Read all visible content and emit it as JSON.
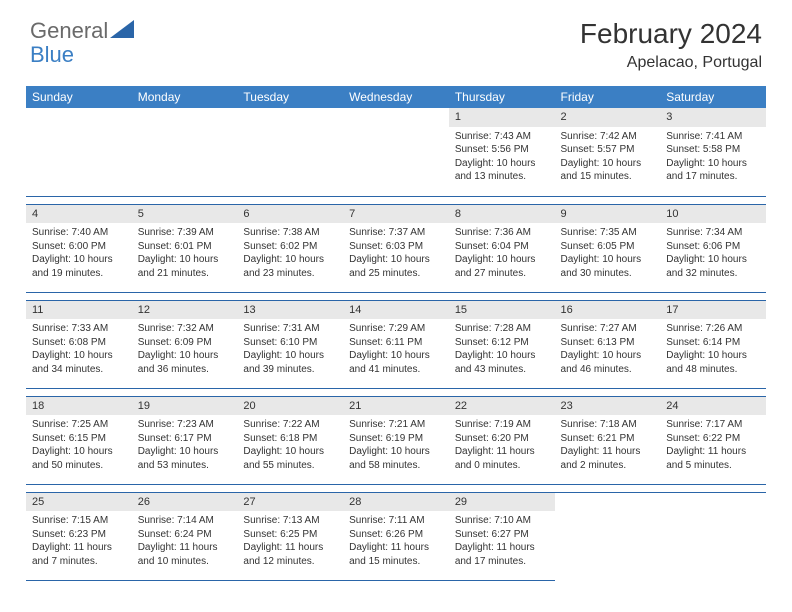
{
  "logo": {
    "part1": "General",
    "part2": "Blue"
  },
  "title": "February 2024",
  "location": "Apelacao, Portugal",
  "headers": [
    "Sunday",
    "Monday",
    "Tuesday",
    "Wednesday",
    "Thursday",
    "Friday",
    "Saturday"
  ],
  "colors": {
    "header_bg": "#3b7fc4",
    "header_fg": "#ffffff",
    "rule": "#2a65a8",
    "daynum_bg": "#e8e8e8",
    "logo_gray": "#6a6a6a",
    "logo_blue": "#3b7fc4"
  },
  "weeks": [
    [
      null,
      null,
      null,
      null,
      {
        "n": "1",
        "sr": "Sunrise: 7:43 AM",
        "ss": "Sunset: 5:56 PM",
        "d1": "Daylight: 10 hours",
        "d2": "and 13 minutes."
      },
      {
        "n": "2",
        "sr": "Sunrise: 7:42 AM",
        "ss": "Sunset: 5:57 PM",
        "d1": "Daylight: 10 hours",
        "d2": "and 15 minutes."
      },
      {
        "n": "3",
        "sr": "Sunrise: 7:41 AM",
        "ss": "Sunset: 5:58 PM",
        "d1": "Daylight: 10 hours",
        "d2": "and 17 minutes."
      }
    ],
    [
      {
        "n": "4",
        "sr": "Sunrise: 7:40 AM",
        "ss": "Sunset: 6:00 PM",
        "d1": "Daylight: 10 hours",
        "d2": "and 19 minutes."
      },
      {
        "n": "5",
        "sr": "Sunrise: 7:39 AM",
        "ss": "Sunset: 6:01 PM",
        "d1": "Daylight: 10 hours",
        "d2": "and 21 minutes."
      },
      {
        "n": "6",
        "sr": "Sunrise: 7:38 AM",
        "ss": "Sunset: 6:02 PM",
        "d1": "Daylight: 10 hours",
        "d2": "and 23 minutes."
      },
      {
        "n": "7",
        "sr": "Sunrise: 7:37 AM",
        "ss": "Sunset: 6:03 PM",
        "d1": "Daylight: 10 hours",
        "d2": "and 25 minutes."
      },
      {
        "n": "8",
        "sr": "Sunrise: 7:36 AM",
        "ss": "Sunset: 6:04 PM",
        "d1": "Daylight: 10 hours",
        "d2": "and 27 minutes."
      },
      {
        "n": "9",
        "sr": "Sunrise: 7:35 AM",
        "ss": "Sunset: 6:05 PM",
        "d1": "Daylight: 10 hours",
        "d2": "and 30 minutes."
      },
      {
        "n": "10",
        "sr": "Sunrise: 7:34 AM",
        "ss": "Sunset: 6:06 PM",
        "d1": "Daylight: 10 hours",
        "d2": "and 32 minutes."
      }
    ],
    [
      {
        "n": "11",
        "sr": "Sunrise: 7:33 AM",
        "ss": "Sunset: 6:08 PM",
        "d1": "Daylight: 10 hours",
        "d2": "and 34 minutes."
      },
      {
        "n": "12",
        "sr": "Sunrise: 7:32 AM",
        "ss": "Sunset: 6:09 PM",
        "d1": "Daylight: 10 hours",
        "d2": "and 36 minutes."
      },
      {
        "n": "13",
        "sr": "Sunrise: 7:31 AM",
        "ss": "Sunset: 6:10 PM",
        "d1": "Daylight: 10 hours",
        "d2": "and 39 minutes."
      },
      {
        "n": "14",
        "sr": "Sunrise: 7:29 AM",
        "ss": "Sunset: 6:11 PM",
        "d1": "Daylight: 10 hours",
        "d2": "and 41 minutes."
      },
      {
        "n": "15",
        "sr": "Sunrise: 7:28 AM",
        "ss": "Sunset: 6:12 PM",
        "d1": "Daylight: 10 hours",
        "d2": "and 43 minutes."
      },
      {
        "n": "16",
        "sr": "Sunrise: 7:27 AM",
        "ss": "Sunset: 6:13 PM",
        "d1": "Daylight: 10 hours",
        "d2": "and 46 minutes."
      },
      {
        "n": "17",
        "sr": "Sunrise: 7:26 AM",
        "ss": "Sunset: 6:14 PM",
        "d1": "Daylight: 10 hours",
        "d2": "and 48 minutes."
      }
    ],
    [
      {
        "n": "18",
        "sr": "Sunrise: 7:25 AM",
        "ss": "Sunset: 6:15 PM",
        "d1": "Daylight: 10 hours",
        "d2": "and 50 minutes."
      },
      {
        "n": "19",
        "sr": "Sunrise: 7:23 AM",
        "ss": "Sunset: 6:17 PM",
        "d1": "Daylight: 10 hours",
        "d2": "and 53 minutes."
      },
      {
        "n": "20",
        "sr": "Sunrise: 7:22 AM",
        "ss": "Sunset: 6:18 PM",
        "d1": "Daylight: 10 hours",
        "d2": "and 55 minutes."
      },
      {
        "n": "21",
        "sr": "Sunrise: 7:21 AM",
        "ss": "Sunset: 6:19 PM",
        "d1": "Daylight: 10 hours",
        "d2": "and 58 minutes."
      },
      {
        "n": "22",
        "sr": "Sunrise: 7:19 AM",
        "ss": "Sunset: 6:20 PM",
        "d1": "Daylight: 11 hours",
        "d2": "and 0 minutes."
      },
      {
        "n": "23",
        "sr": "Sunrise: 7:18 AM",
        "ss": "Sunset: 6:21 PM",
        "d1": "Daylight: 11 hours",
        "d2": "and 2 minutes."
      },
      {
        "n": "24",
        "sr": "Sunrise: 7:17 AM",
        "ss": "Sunset: 6:22 PM",
        "d1": "Daylight: 11 hours",
        "d2": "and 5 minutes."
      }
    ],
    [
      {
        "n": "25",
        "sr": "Sunrise: 7:15 AM",
        "ss": "Sunset: 6:23 PM",
        "d1": "Daylight: 11 hours",
        "d2": "and 7 minutes."
      },
      {
        "n": "26",
        "sr": "Sunrise: 7:14 AM",
        "ss": "Sunset: 6:24 PM",
        "d1": "Daylight: 11 hours",
        "d2": "and 10 minutes."
      },
      {
        "n": "27",
        "sr": "Sunrise: 7:13 AM",
        "ss": "Sunset: 6:25 PM",
        "d1": "Daylight: 11 hours",
        "d2": "and 12 minutes."
      },
      {
        "n": "28",
        "sr": "Sunrise: 7:11 AM",
        "ss": "Sunset: 6:26 PM",
        "d1": "Daylight: 11 hours",
        "d2": "and 15 minutes."
      },
      {
        "n": "29",
        "sr": "Sunrise: 7:10 AM",
        "ss": "Sunset: 6:27 PM",
        "d1": "Daylight: 11 hours",
        "d2": "and 17 minutes."
      },
      null,
      null
    ]
  ]
}
